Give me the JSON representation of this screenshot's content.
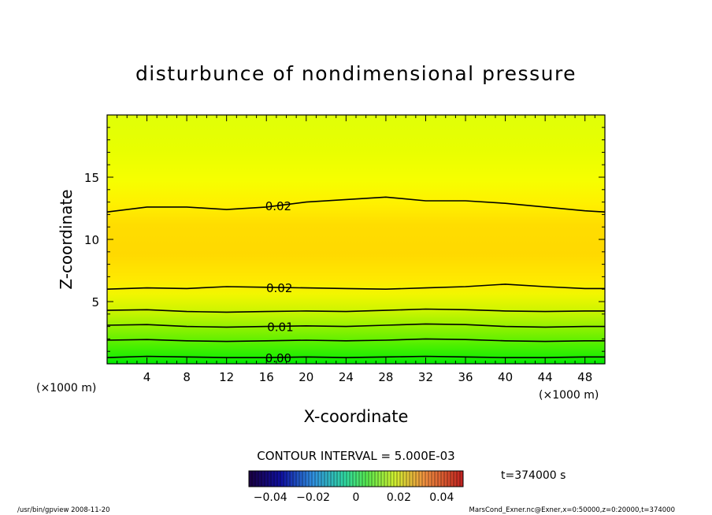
{
  "chart_data": {
    "type": "heatmap",
    "title": "disturbunce of nondimensional pressure",
    "xlabel": "X-coordinate",
    "ylabel": "Z-coordinate",
    "x_unit_left": "(×1000 m)",
    "x_unit_right": "(×1000 m)",
    "xlim": [
      0,
      50
    ],
    "ylim": [
      0,
      20
    ],
    "x_ticks": [
      4,
      8,
      12,
      16,
      20,
      24,
      28,
      32,
      36,
      40,
      44,
      48
    ],
    "y_ticks": [
      5,
      10,
      15
    ],
    "contour_interval_label": "CONTOUR INTERVAL = 5.000E-03",
    "time_label": "t=374000 s",
    "colorbar_ticks": [
      "-0.04",
      "-0.02",
      "0",
      "0.02",
      "0.04"
    ],
    "colorbar_range": [
      -0.05,
      0.05
    ],
    "footer_left": "/usr/bin/gpview   2008-11-20",
    "footer_right": "MarsCond_Exner.nc@Exner,x=0:50000,z=0:20000,t=374000",
    "contours": [
      {
        "label": "0.00",
        "label_x": 17.2,
        "points": [
          [
            0,
            0.5
          ],
          [
            4,
            0.6
          ],
          [
            8,
            0.55
          ],
          [
            12,
            0.5
          ],
          [
            16,
            0.5
          ],
          [
            20,
            0.55
          ],
          [
            24,
            0.5
          ],
          [
            28,
            0.55
          ],
          [
            32,
            0.6
          ],
          [
            36,
            0.55
          ],
          [
            40,
            0.5
          ],
          [
            44,
            0.5
          ],
          [
            48,
            0.55
          ],
          [
            50,
            0.55
          ]
        ]
      },
      {
        "label": "",
        "label_x": null,
        "points": [
          [
            0,
            1.9
          ],
          [
            4,
            1.95
          ],
          [
            8,
            1.85
          ],
          [
            12,
            1.8
          ],
          [
            16,
            1.85
          ],
          [
            20,
            1.9
          ],
          [
            24,
            1.85
          ],
          [
            28,
            1.9
          ],
          [
            32,
            2.0
          ],
          [
            36,
            1.95
          ],
          [
            40,
            1.85
          ],
          [
            44,
            1.8
          ],
          [
            48,
            1.85
          ],
          [
            50,
            1.85
          ]
        ]
      },
      {
        "label": "0.01",
        "label_x": 17.4,
        "points": [
          [
            0,
            3.1
          ],
          [
            4,
            3.15
          ],
          [
            8,
            3.0
          ],
          [
            12,
            2.95
          ],
          [
            16,
            3.0
          ],
          [
            20,
            3.05
          ],
          [
            24,
            3.0
          ],
          [
            28,
            3.1
          ],
          [
            32,
            3.2
          ],
          [
            36,
            3.15
          ],
          [
            40,
            3.0
          ],
          [
            44,
            2.95
          ],
          [
            48,
            3.0
          ],
          [
            50,
            3.0
          ]
        ]
      },
      {
        "label": "",
        "label_x": null,
        "points": [
          [
            0,
            4.3
          ],
          [
            4,
            4.35
          ],
          [
            8,
            4.2
          ],
          [
            12,
            4.15
          ],
          [
            16,
            4.2
          ],
          [
            20,
            4.25
          ],
          [
            24,
            4.2
          ],
          [
            28,
            4.3
          ],
          [
            32,
            4.4
          ],
          [
            36,
            4.35
          ],
          [
            40,
            4.25
          ],
          [
            44,
            4.2
          ],
          [
            48,
            4.25
          ],
          [
            50,
            4.25
          ]
        ]
      },
      {
        "label": "0.02",
        "label_x": 17.3,
        "points": [
          [
            0,
            6.0
          ],
          [
            4,
            6.1
          ],
          [
            8,
            6.05
          ],
          [
            12,
            6.2
          ],
          [
            16,
            6.15
          ],
          [
            20,
            6.1
          ],
          [
            24,
            6.05
          ],
          [
            28,
            6.0
          ],
          [
            32,
            6.1
          ],
          [
            36,
            6.2
          ],
          [
            40,
            6.4
          ],
          [
            44,
            6.2
          ],
          [
            48,
            6.05
          ],
          [
            50,
            6.05
          ]
        ]
      },
      {
        "label": "0.02",
        "label_x": 17.2,
        "points": [
          [
            0,
            12.2
          ],
          [
            4,
            12.6
          ],
          [
            8,
            12.6
          ],
          [
            12,
            12.4
          ],
          [
            16,
            12.6
          ],
          [
            20,
            13.0
          ],
          [
            24,
            13.2
          ],
          [
            28,
            13.4
          ],
          [
            32,
            13.1
          ],
          [
            36,
            13.1
          ],
          [
            40,
            12.9
          ],
          [
            44,
            12.6
          ],
          [
            48,
            12.3
          ],
          [
            50,
            12.2
          ]
        ]
      }
    ]
  }
}
